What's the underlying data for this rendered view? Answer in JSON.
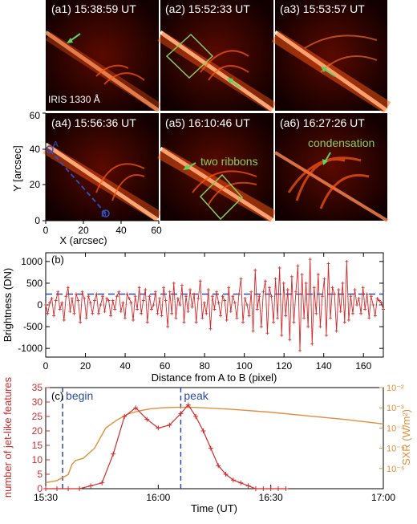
{
  "panels_a": {
    "titles": [
      "(a1) 15:38:59 UT",
      "(a2) 15:52:33 UT",
      "(a3) 15:53:57 UT",
      "(a4) 15:56:36 UT",
      "(a5) 16:10:46 UT",
      "(a6) 16:27:26 UT"
    ],
    "instrument_label": "IRIS 1330 Å",
    "a4_point_A": "A",
    "a4_point_B": "B",
    "annotations": {
      "two_ribbons": "two ribbons",
      "condensation": "condensation"
    },
    "xlabel": "X (arcsec)",
    "ylabel": "Y [arcsec]",
    "xticks": [
      "0",
      "20",
      "40",
      "60"
    ],
    "yticks": [
      "0",
      "20",
      "40",
      "60"
    ],
    "colors": {
      "image_bg": "#120000",
      "ribbon": "#ffe6c8",
      "loops": "#ff5a14",
      "box": "#8acc5a",
      "arrow": "#5fd35f",
      "slit": "#3050c8"
    }
  },
  "chart_data": [
    {
      "type": "line",
      "panel_label": "(b)",
      "xlabel": "Distance from A to B (pixel)",
      "ylabel": "Brightness (DN)",
      "xlim": [
        0,
        170
      ],
      "ylim": [
        -1200,
        1200
      ],
      "xticks": [
        0,
        20,
        40,
        60,
        80,
        100,
        120,
        140,
        160
      ],
      "yticks": [
        -1000,
        -500,
        0,
        500,
        1000
      ],
      "threshold": 250,
      "color": "#d02a2a",
      "threshold_color": "#2a4aa8",
      "values": [
        0,
        -200,
        50,
        150,
        -250,
        100,
        300,
        -100,
        50,
        -350,
        200,
        400,
        -150,
        150,
        -200,
        250,
        100,
        -400,
        300,
        150,
        -300,
        200,
        50,
        -200,
        100,
        250,
        -200,
        0,
        200,
        -150,
        150,
        100,
        -250,
        100,
        -100,
        200,
        300,
        -150,
        50,
        -300,
        250,
        150,
        50,
        -350,
        200,
        -100,
        400,
        -200,
        100,
        350,
        -400,
        200,
        -100,
        0,
        300,
        -200,
        150,
        -250,
        400,
        100,
        -500,
        300,
        -200,
        500,
        -300,
        150,
        0,
        450,
        -400,
        200,
        -150,
        350,
        -50,
        250,
        -400,
        150,
        550,
        -300,
        50,
        -200,
        350,
        -550,
        200,
        -100,
        300,
        50,
        -250,
        200,
        100,
        -350,
        400,
        -150,
        200,
        50,
        -300,
        250,
        600,
        -400,
        150,
        0,
        -250,
        300,
        -600,
        800,
        -100,
        200,
        -500,
        300,
        550,
        -650,
        400,
        200,
        -400,
        600,
        -300,
        850,
        -700,
        500,
        -250,
        350,
        -800,
        650,
        -400,
        300,
        900,
        -1050,
        700,
        -300,
        500,
        -500,
        1050,
        -900,
        400,
        -200,
        700,
        -500,
        200,
        600,
        -700,
        950,
        -300,
        400,
        250,
        -600,
        350,
        -150,
        500,
        -400,
        1000,
        -350,
        200,
        -200,
        350,
        0,
        150,
        -200,
        400,
        -100,
        250,
        -300,
        200,
        0,
        -250,
        150,
        100,
        50,
        -100
      ]
    },
    {
      "type": "line",
      "panel_label": "(c)",
      "xlabel": "Time (UT)",
      "ylabel_left": "number of jet-like features",
      "ylabel_right": "SXR (W/m²)",
      "xlim_minutes": [
        0,
        90
      ],
      "xtick_labels": [
        "15:30",
        "16:00",
        "16:30",
        "17:00"
      ],
      "xtick_minutes": [
        0,
        30,
        60,
        90
      ],
      "ylim_left": [
        0,
        35
      ],
      "yticks_left": [
        0,
        5,
        10,
        15,
        20,
        25,
        30,
        35
      ],
      "ylim_right_log10": [
        -7,
        -2
      ],
      "yticks_right_labels": [
        "10⁻⁶",
        "10⁻⁵",
        "10⁻⁴",
        "10⁻³",
        "10⁻²"
      ],
      "yticks_right_log10": [
        -6,
        -5,
        -4,
        -3,
        -2
      ],
      "markers": [
        {
          "label": "begin",
          "minute": 4.5
        },
        {
          "label": "peak",
          "minute": 36
        }
      ],
      "series": [
        {
          "name": "number of jet-like features",
          "color": "#d02a2a",
          "x_minutes": [
            0,
            3,
            6,
            9,
            12,
            15,
            18,
            21,
            24,
            27,
            30,
            33,
            36,
            38,
            40,
            42,
            44,
            46,
            48,
            50,
            52,
            54,
            56,
            58,
            60,
            62,
            64
          ],
          "values": [
            0,
            0,
            0,
            0,
            1,
            2,
            12,
            25,
            28,
            24,
            21,
            22,
            26,
            29,
            25,
            20,
            14,
            8,
            5,
            3,
            2,
            1,
            0,
            0,
            0,
            0,
            0
          ]
        },
        {
          "name": "SXR",
          "color": "#e0903a",
          "x_minutes": [
            0,
            3,
            6,
            7,
            8,
            10,
            13,
            16,
            19,
            22,
            25,
            28,
            31,
            34,
            37,
            40,
            50,
            60,
            70,
            80,
            90
          ],
          "log10_values": [
            -6.7,
            -6.6,
            -6.3,
            -5.8,
            -5.6,
            -5.5,
            -5.0,
            -4.0,
            -3.6,
            -3.3,
            -3.15,
            -3.05,
            -3.0,
            -2.98,
            -2.97,
            -2.98,
            -3.08,
            -3.22,
            -3.4,
            -3.58,
            -3.8
          ]
        }
      ]
    }
  ]
}
